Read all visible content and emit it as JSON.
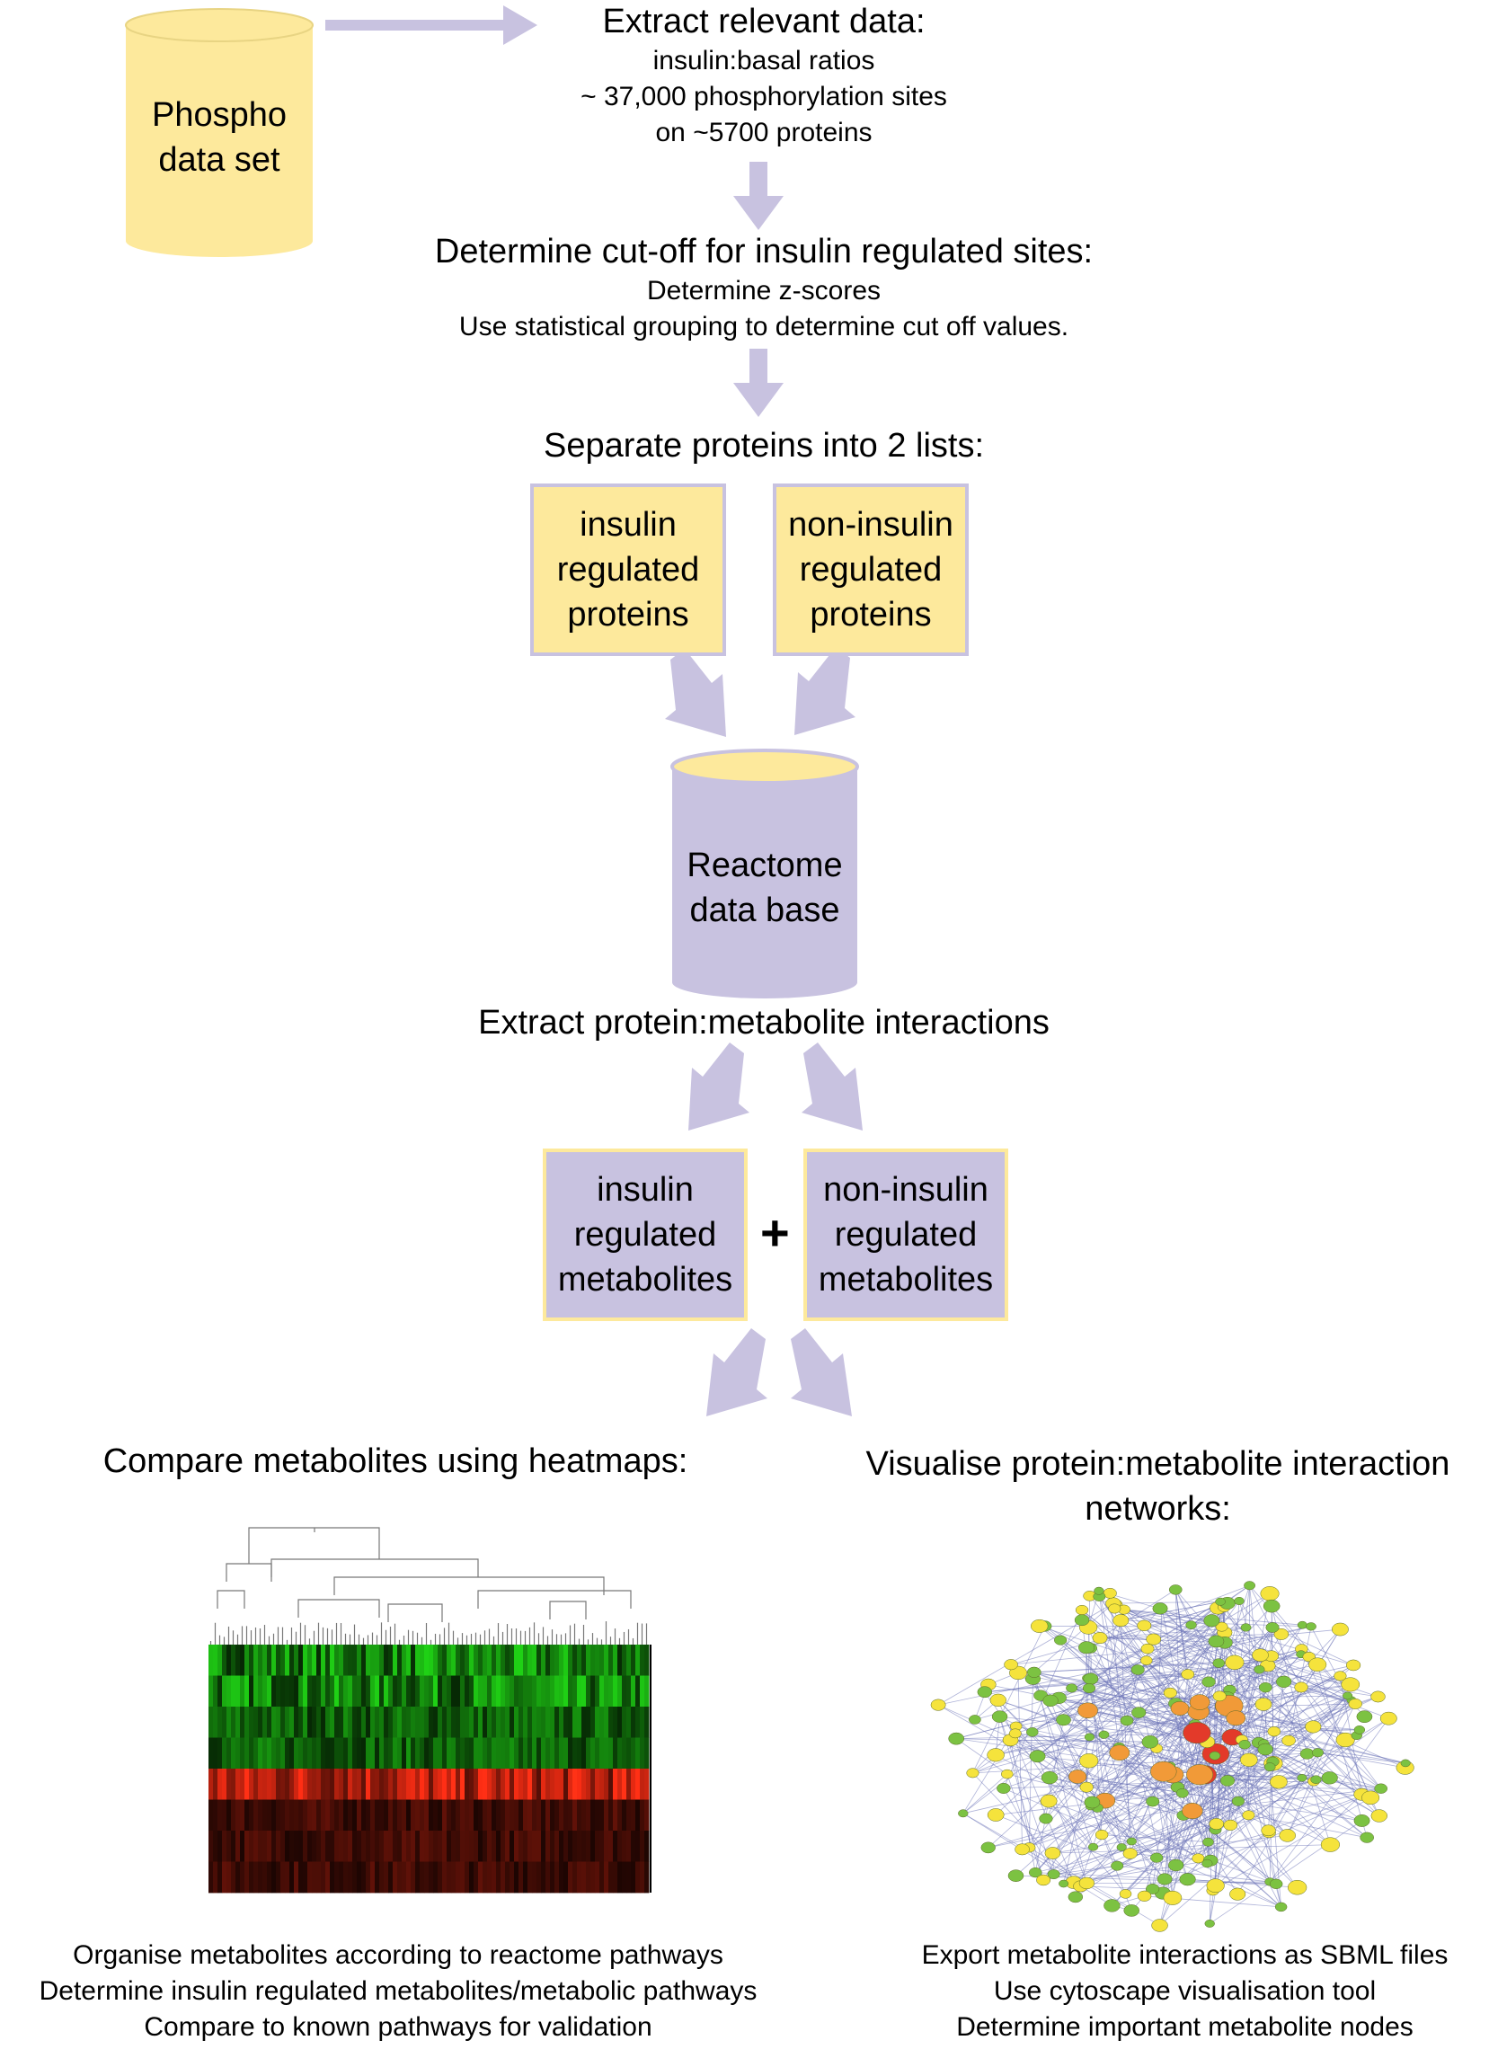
{
  "colors": {
    "arrow": "#c8c2e0",
    "yellow": "#fde99c",
    "purple": "#c8c2e0",
    "network_node_green": "#7cc242",
    "network_node_yellow": "#f5e33c",
    "network_node_orange": "#f19a38",
    "network_node_red": "#e33a2a"
  },
  "phospho_cylinder": {
    "label": "Phospho\ndata set"
  },
  "step1": {
    "heading": "Extract relevant data:",
    "lines": [
      "insulin:basal ratios",
      "~ 37,000 phosphorylation sites",
      "on ~5700 proteins"
    ]
  },
  "step2": {
    "heading": "Determine cut-off for insulin regulated sites:",
    "lines": [
      "Determine z-scores",
      "Use statistical grouping to determine cut off values."
    ]
  },
  "step3": {
    "heading": "Separate proteins into 2 lists:"
  },
  "protein_boxes": {
    "insulin": "insulin\nregulated\nproteins",
    "non_insulin": "non-insulin\nregulated\nproteins"
  },
  "reactome_cylinder": {
    "label": "Reactome\ndata base"
  },
  "step4": {
    "heading": "Extract protein:metabolite interactions"
  },
  "metabolite_boxes": {
    "insulin": "insulin\nregulated\nmetabolites",
    "plus": "+",
    "non_insulin": "non-insulin\nregulated\nmetabolites"
  },
  "left_branch": {
    "heading": "Compare metabolites using heatmaps:",
    "lines": [
      "Organise metabolites according to reactome pathways",
      "Determine insulin regulated metabolites/metabolic pathways",
      "Compare to known pathways for validation"
    ]
  },
  "right_branch": {
    "heading": "Visualise protein:metabolite interaction\nnetworks:",
    "lines": [
      "Export metabolite interactions as SBML files",
      "Use cytoscape visualisation tool",
      "Determine important metabolite nodes"
    ]
  }
}
